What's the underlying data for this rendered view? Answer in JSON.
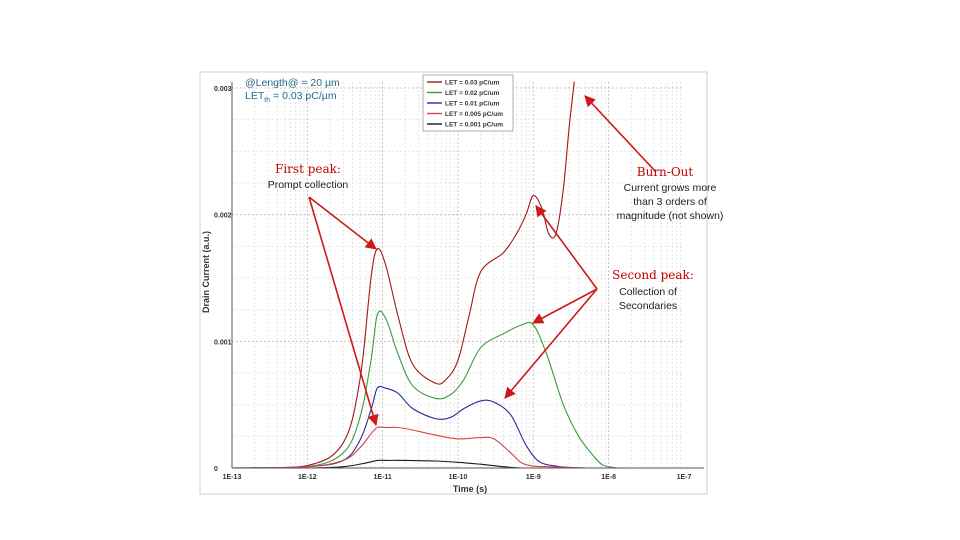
{
  "chart_data": {
    "type": "line",
    "xlabel": "Time (s)",
    "ylabel": "Drain Current (a.u.)",
    "x_scale": "log",
    "xlim": [
      1e-13,
      1e-07
    ],
    "ylim": [
      0,
      0.003
    ],
    "x_ticks": [
      "1E-13",
      "1E-12",
      "1E-11",
      "1E-10",
      "1E-9",
      "1E-8",
      "1E-7"
    ],
    "y_ticks": [
      "0",
      "0.001",
      "0.002",
      "0.003"
    ],
    "y_tick_values": [
      0,
      0.001,
      0.002,
      0.003
    ],
    "grid": "on",
    "legend_position": "top-center",
    "series": [
      {
        "name": "LET = 0.03 pC/um",
        "color": "#a01818",
        "x": [
          1e-13,
          1e-12,
          3e-12,
          5e-12,
          7e-12,
          8.5e-12,
          1.1e-11,
          1.6e-11,
          2.5e-11,
          5e-11,
          7e-11,
          1e-10,
          1.4e-10,
          2e-10,
          4e-10,
          6e-10,
          8e-10,
          1e-09,
          1.3e-09,
          1.6e-09,
          2e-09,
          2.5e-09,
          3e-09,
          3.5e-09
        ],
        "y": [
          0,
          2e-05,
          0.0002,
          0.0007,
          0.0015,
          0.00173,
          0.0016,
          0.0012,
          0.00082,
          0.00067,
          0.0007,
          0.00085,
          0.0012,
          0.00155,
          0.0017,
          0.00185,
          0.002,
          0.00215,
          0.00205,
          0.00185,
          0.00185,
          0.0022,
          0.0027,
          0.00305
        ]
      },
      {
        "name": "LET = 0.02 pC/um",
        "color": "#3a9a3a",
        "x": [
          1e-13,
          1e-12,
          3e-12,
          5e-12,
          7e-12,
          8.5e-12,
          1.1e-11,
          1.6e-11,
          2.5e-11,
          5e-11,
          8e-11,
          1.2e-10,
          2e-10,
          4e-10,
          7e-10,
          1e-09,
          1.5e-09,
          2.5e-09,
          4e-09,
          6e-09,
          8e-09,
          1e-08,
          1.3e-08
        ],
        "y": [
          0,
          1e-05,
          0.00012,
          0.0004,
          0.00085,
          0.00121,
          0.00118,
          0.0009,
          0.00065,
          0.00055,
          0.00058,
          0.0007,
          0.00095,
          0.00106,
          0.00113,
          0.00113,
          0.0009,
          0.0005,
          0.00025,
          0.00011,
          3e-05,
          1e-05,
          0
        ]
      },
      {
        "name": "LET = 0.01 pC/um",
        "color": "#2a2a9a",
        "x": [
          1e-13,
          1e-12,
          3e-12,
          5e-12,
          7e-12,
          8.5e-12,
          1.1e-11,
          1.6e-11,
          2.5e-11,
          5e-11,
          8e-11,
          1.2e-10,
          2e-10,
          3e-10,
          5e-10,
          8e-10,
          1.2e-09,
          2e-09,
          3e-09,
          5e-09,
          7e-09
        ],
        "y": [
          0,
          1e-05,
          6e-05,
          0.00022,
          0.00046,
          0.00063,
          0.00063,
          0.00059,
          0.00047,
          0.00039,
          0.0004,
          0.00047,
          0.00053,
          0.00052,
          0.00042,
          0.00018,
          5e-05,
          1.5e-05,
          5e-06,
          0,
          0
        ]
      },
      {
        "name": "LET = 0.005 pC/um",
        "color": "#d04848",
        "x": [
          1e-13,
          1e-12,
          3e-12,
          5e-12,
          7e-12,
          8.5e-12,
          1.1e-11,
          1.6e-11,
          2.5e-11,
          5e-11,
          1e-10,
          2e-10,
          3e-10,
          5e-10,
          7e-10,
          1e-09,
          1.5e-09,
          3e-09,
          5e-09
        ],
        "y": [
          0,
          1e-05,
          6e-05,
          0.00016,
          0.00027,
          0.00032,
          0.00032,
          0.00032,
          0.0003,
          0.00026,
          0.00023,
          0.00024,
          0.00023,
          0.00012,
          4e-05,
          1.5e-05,
          1e-05,
          5e-06,
          0
        ]
      },
      {
        "name": "LET = 0.001 pC/um",
        "color": "#1a1a1a",
        "x": [
          1e-13,
          1e-12,
          3e-12,
          6e-12,
          8.5e-12,
          1.1e-11,
          2e-11,
          5e-11,
          1e-10,
          2e-10,
          4e-10,
          7e-10,
          1e-09
        ],
        "y": [
          0,
          0,
          1e-05,
          4e-05,
          6e-05,
          6e-05,
          6e-05,
          5.5e-05,
          4.5e-05,
          3e-05,
          1e-05,
          0,
          0
        ]
      }
    ]
  },
  "conditions": {
    "line1": "@Length@ = 20 µm",
    "line2_pre": "LET",
    "line2_sub": "th",
    "line2_post": " = 0.03 pC/µm"
  },
  "annotations": {
    "first_peak": {
      "title": "First peak:",
      "text": "Prompt collection"
    },
    "burn_out": {
      "title": "Burn-Out",
      "text_lines": [
        "Current grows more",
        "than 3 orders of",
        "magnitude (not shown)"
      ]
    },
    "second_peak": {
      "title": "Second peak:",
      "text_lines": [
        "Collection of",
        "Secondaries"
      ]
    }
  },
  "colors": {
    "arrow": "#cc1a1a",
    "annotation_title": "#c00000",
    "conditions_text": "#1f6f8b"
  }
}
